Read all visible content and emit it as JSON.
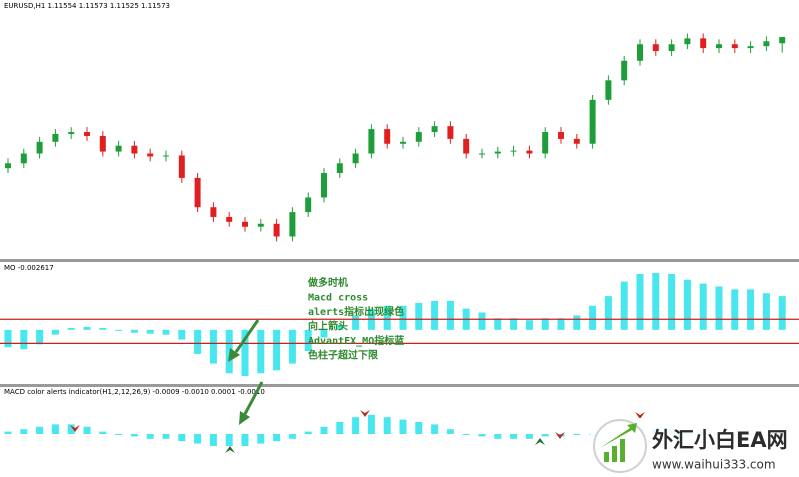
{
  "chart_data": [
    {
      "type": "candlestick",
      "title": "EURUSD,H1  1.11554 1.11573 1.11525 1.11573",
      "up_color": "#1e9e3a",
      "down_color": "#e02020",
      "ylim": [
        1.109,
        1.1165
      ],
      "open": [
        1.1117,
        1.11185,
        1.11215,
        1.11251,
        1.11275,
        1.11281,
        1.11269,
        1.11221,
        1.11239,
        1.11215,
        1.11206,
        1.11209,
        1.1114,
        1.1105,
        1.1102,
        1.11005,
        1.1099,
        1.10999,
        1.1096,
        1.11035,
        1.1108,
        1.11155,
        1.11185,
        1.11215,
        1.1129,
        1.11245,
        1.11251,
        1.11281,
        1.11299,
        1.1126,
        1.11215,
        1.11215,
        1.11221,
        1.11224,
        1.11215,
        1.11281,
        1.1126,
        1.11245,
        1.1138,
        1.1144,
        1.115,
        1.11551,
        1.1153,
        1.11551,
        1.11569,
        1.11539,
        1.11551,
        1.11539,
        1.11545,
        1.11554
      ],
      "high": [
        1.112,
        1.1123,
        1.11266,
        1.1129,
        1.11296,
        1.11296,
        1.11284,
        1.11254,
        1.11254,
        1.1123,
        1.11224,
        1.11224,
        1.11155,
        1.11065,
        1.11035,
        1.1102,
        1.11014,
        1.11014,
        1.1105,
        1.11095,
        1.1117,
        1.112,
        1.1123,
        1.11305,
        1.11305,
        1.11266,
        1.11296,
        1.11314,
        1.11314,
        1.11275,
        1.1123,
        1.11236,
        1.11239,
        1.11239,
        1.11296,
        1.11296,
        1.11275,
        1.11395,
        1.11455,
        1.11515,
        1.11566,
        1.11566,
        1.11566,
        1.11584,
        1.11584,
        1.11566,
        1.11566,
        1.1156,
        1.11575,
        1.11573
      ],
      "low": [
        1.11155,
        1.1117,
        1.112,
        1.11236,
        1.1126,
        1.11254,
        1.11206,
        1.11206,
        1.112,
        1.11191,
        1.11191,
        1.11125,
        1.11035,
        1.11005,
        1.1099,
        1.10975,
        1.10975,
        1.10945,
        1.10945,
        1.1102,
        1.11065,
        1.1114,
        1.1117,
        1.112,
        1.1123,
        1.1123,
        1.11236,
        1.11266,
        1.11245,
        1.112,
        1.112,
        1.112,
        1.11206,
        1.112,
        1.112,
        1.11245,
        1.1123,
        1.1123,
        1.11365,
        1.11425,
        1.11485,
        1.11515,
        1.11515,
        1.11536,
        1.11524,
        1.11524,
        1.11524,
        1.11524,
        1.1153,
        1.11525
      ],
      "close": [
        1.11185,
        1.11215,
        1.11251,
        1.11275,
        1.11281,
        1.11269,
        1.11221,
        1.11239,
        1.11215,
        1.11206,
        1.11209,
        1.1114,
        1.1105,
        1.1102,
        1.11005,
        1.1099,
        1.10999,
        1.1096,
        1.11035,
        1.1108,
        1.11155,
        1.11185,
        1.11215,
        1.1129,
        1.11245,
        1.11251,
        1.11281,
        1.11299,
        1.1126,
        1.11215,
        1.11215,
        1.11221,
        1.11224,
        1.11215,
        1.11281,
        1.1126,
        1.11245,
        1.1138,
        1.1144,
        1.115,
        1.11551,
        1.1153,
        1.11551,
        1.11569,
        1.11539,
        1.11551,
        1.11539,
        1.11545,
        1.1156,
        1.11573
      ]
    },
    {
      "type": "bar",
      "title": "MO -0.002617",
      "color": "#48e6ef",
      "level_color": "#c81e1e",
      "ylim": [
        -0.0052,
        0.006
      ],
      "levels": [
        0.0011,
        -0.0014
      ],
      "values": [
        -0.0018,
        -0.002,
        -0.0015,
        -0.0005,
        0.0002,
        0.0003,
        0.0002,
        -0.0001,
        -0.0003,
        -0.0004,
        -0.0005,
        -0.001,
        -0.0025,
        -0.0035,
        -0.0045,
        -0.0048,
        -0.0045,
        -0.0042,
        -0.0035,
        -0.0022,
        -0.0008,
        0.0005,
        0.0015,
        0.0022,
        0.0025,
        0.0025,
        0.0028,
        0.003,
        0.003,
        0.0022,
        0.0018,
        0.0012,
        0.0012,
        0.001,
        0.0012,
        0.0012,
        0.0015,
        0.0025,
        0.0035,
        0.005,
        0.0058,
        0.0059,
        0.0058,
        0.0052,
        0.0048,
        0.0045,
        0.0042,
        0.0042,
        0.0038,
        0.0035
      ]
    },
    {
      "type": "bar",
      "title": "MACD color alerts indicator(H1,2,12,26,9) -0.0009 -0.0010 0.0001 -0.0010",
      "color": "#48e6ef",
      "ylim": [
        -0.0015,
        0.0015
      ],
      "values": [
        0.0001,
        0.0002,
        0.0003,
        0.0004,
        0.0004,
        0.0003,
        0.0001,
        0,
        -0.0001,
        -0.0002,
        -0.0002,
        -0.0003,
        -0.0004,
        -0.0005,
        -0.0005,
        -0.0005,
        -0.0004,
        -0.0003,
        -0.0002,
        0.0001,
        0.0003,
        0.0005,
        0.0007,
        0.0008,
        0.0007,
        0.0006,
        0.0005,
        0.0004,
        0.0002,
        0,
        -0.0001,
        -0.0002,
        -0.0002,
        -0.0002,
        -0.0001,
        -0.0001,
        0,
        0,
        0.0001,
        0.0001,
        0.0002,
        0.0002,
        0.0002,
        0.0001,
        0.0001,
        0,
        0,
        0,
        0,
        -0.0001
      ]
    }
  ],
  "annotation": [
    "做多时机",
    "Macd  cross",
    "alerts指标出现绿色",
    "向上箭头",
    "AdvantFX_MO指标蓝",
    "色柱子超过下限"
  ],
  "watermark": {
    "name": "外汇小白EA网",
    "url": "www.waihui333.com"
  }
}
